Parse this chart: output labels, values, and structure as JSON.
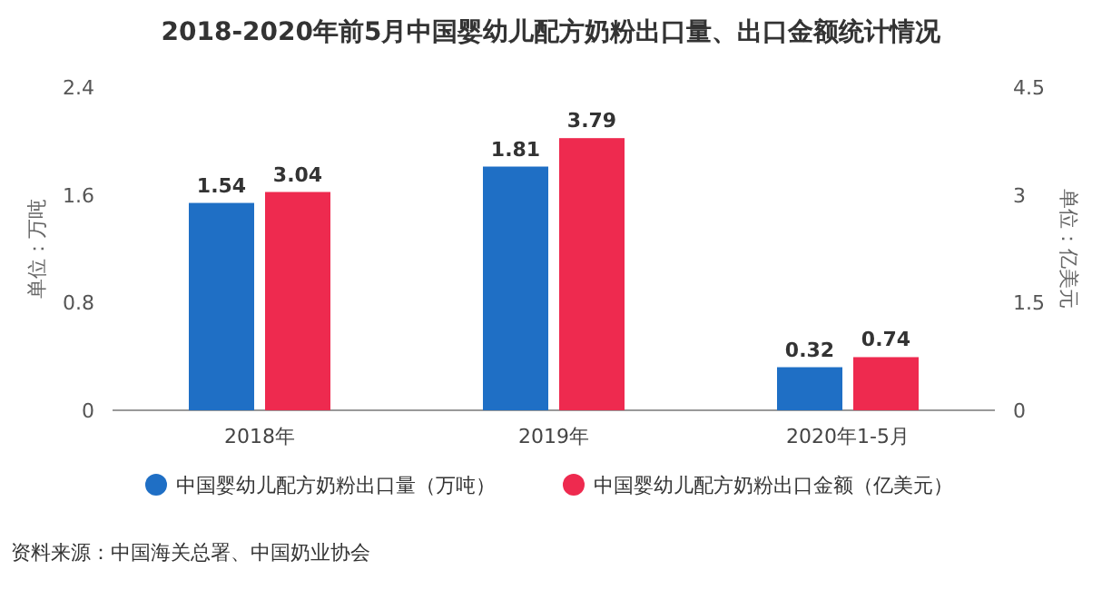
{
  "chart_data": {
    "type": "bar",
    "title": "2018-2020年前5月中国婴幼儿配方奶粉出口量、出口金额统计情况",
    "categories": [
      "2018年",
      "2019年",
      "2020年1-5月"
    ],
    "series": [
      {
        "name": "中国婴幼儿配方奶粉出口量（万吨）",
        "color": "#1f6fc5",
        "values": [
          1.54,
          1.81,
          0.32
        ]
      },
      {
        "name": "中国婴幼儿配方奶粉出口金额（亿美元）",
        "color": "#ee2a4f",
        "values": [
          3.04,
          3.79,
          0.74
        ],
        "axis": "y2"
      }
    ],
    "ylabel": "单位：万吨",
    "y2label": "单位：亿美元",
    "ylim": [
      0,
      2.4
    ],
    "yticks": [
      0,
      0.8,
      1.6,
      2.4
    ],
    "y2lim": [
      0,
      4.5
    ],
    "y2ticks": [
      0,
      1.5,
      3,
      4.5
    ],
    "data_labels": true,
    "legend": "bottom",
    "grid": false,
    "annotations": [
      "资料来源：中国海关总署、中国奶业协会"
    ]
  }
}
